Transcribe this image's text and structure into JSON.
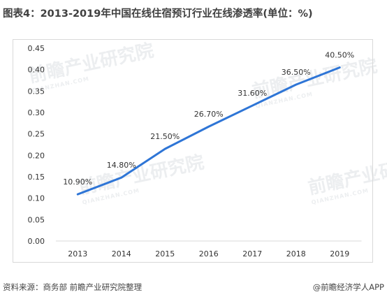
{
  "title": "图表4：2013-2019年中国在线住宿预订行业在线渗透率(单位：%)",
  "footer": {
    "source": "资料来源：商务部 前瞻产业研究院整理",
    "credit": "@前瞻经济学人APP"
  },
  "watermark": {
    "text": "前瞻产业研究院",
    "sub": "QIANZHAN.COM"
  },
  "colors": {
    "line": "#2e75d6",
    "grid": "#d9d9d9",
    "text": "#333333"
  },
  "chart_data": {
    "type": "line",
    "title": "2013-2019年中国在线住宿预订行业在线渗透率",
    "xlabel": "",
    "ylabel": "",
    "categories": [
      "2013",
      "2014",
      "2015",
      "2016",
      "2017",
      "2018",
      "2019"
    ],
    "series": [
      {
        "values": [
          0.109,
          0.148,
          0.215,
          0.267,
          0.316,
          0.365,
          0.405
        ],
        "labels": [
          "10.90%",
          "14.80%",
          "21.50%",
          "26.70%",
          "31.60%",
          "36.50%",
          "40.50%"
        ]
      }
    ],
    "ylim": [
      0,
      0.45
    ],
    "yticks": [
      "0.00",
      "0.05",
      "0.10",
      "0.15",
      "0.20",
      "0.25",
      "0.30",
      "0.35",
      "0.40",
      "0.45"
    ],
    "grid": false,
    "legend": "none"
  }
}
